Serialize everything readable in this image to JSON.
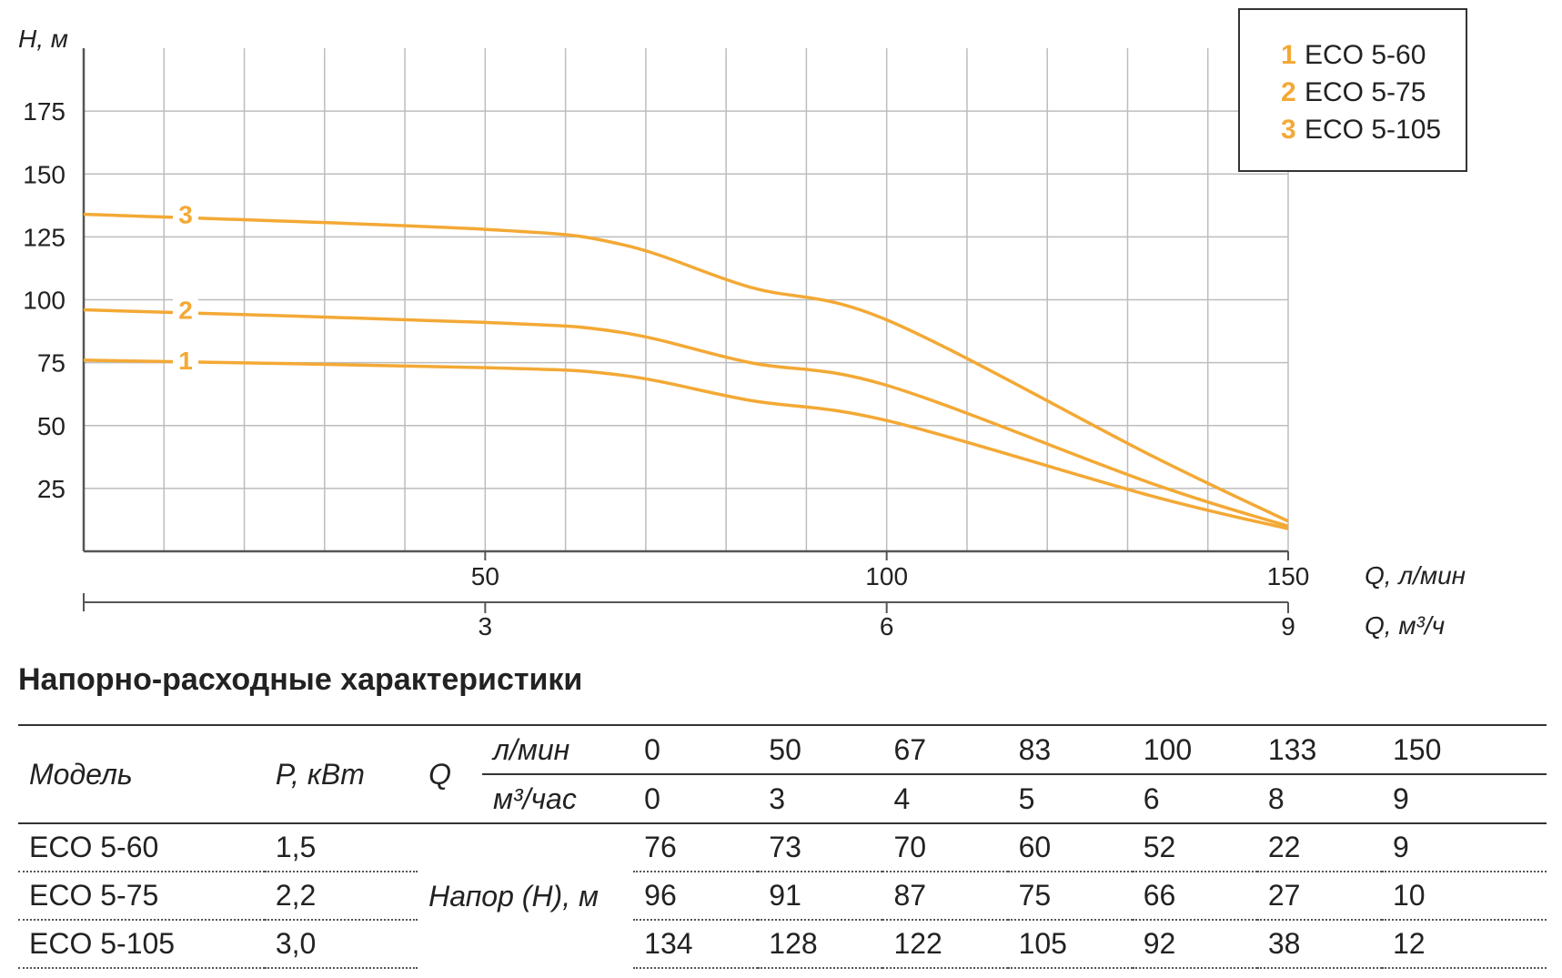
{
  "chart_data": {
    "type": "line",
    "x_label": "Q, л/мин",
    "x2_label": "Q, м³/ч",
    "y_label": "H, м",
    "xlim": [
      0,
      150
    ],
    "ylim": [
      0,
      200
    ],
    "y_ticks": [
      "175",
      "150",
      "125",
      "100",
      "75",
      "50",
      "25"
    ],
    "x_ticks": [
      "50",
      "100",
      "150"
    ],
    "x2_ticks": [
      "3",
      "6",
      "9"
    ],
    "grid": true,
    "legend_position": "top-right",
    "series": [
      {
        "name": "ECO 5-60",
        "num": "1",
        "x": [
          0,
          50,
          67,
          83,
          100,
          133,
          150
        ],
        "values": [
          76,
          73,
          70,
          60,
          52,
          22,
          9
        ]
      },
      {
        "name": "ECO 5-75",
        "num": "2",
        "x": [
          0,
          50,
          67,
          83,
          100,
          133,
          150
        ],
        "values": [
          96,
          91,
          87,
          75,
          66,
          27,
          10
        ]
      },
      {
        "name": "ECO 5-105",
        "num": "3",
        "x": [
          0,
          50,
          67,
          83,
          100,
          133,
          150
        ],
        "values": [
          134,
          128,
          122,
          105,
          92,
          38,
          12
        ]
      }
    ],
    "line_color": "#f3a935",
    "grid_color": "#bdbdbd"
  },
  "table": {
    "title": "Напорно-расходные характеристики",
    "col_model": "Модель",
    "col_power": "P, кВт",
    "col_q": "Q",
    "unit_lmin": "л/мин",
    "unit_m3": "м³/час",
    "q_lmin": [
      "0",
      "50",
      "67",
      "83",
      "100",
      "133",
      "150"
    ],
    "q_m3": [
      "0",
      "3",
      "4",
      "5",
      "6",
      "8",
      "9"
    ],
    "head_label": "Напор (H), м",
    "rows": [
      {
        "model": "ECO 5-60",
        "power": "1,5",
        "values": [
          "76",
          "73",
          "70",
          "60",
          "52",
          "22",
          "9"
        ]
      },
      {
        "model": "ECO 5-75",
        "power": "2,2",
        "values": [
          "96",
          "91",
          "87",
          "75",
          "66",
          "27",
          "10"
        ]
      },
      {
        "model": "ECO 5-105",
        "power": "3,0",
        "values": [
          "134",
          "128",
          "122",
          "105",
          "92",
          "38",
          "12"
        ]
      }
    ]
  }
}
